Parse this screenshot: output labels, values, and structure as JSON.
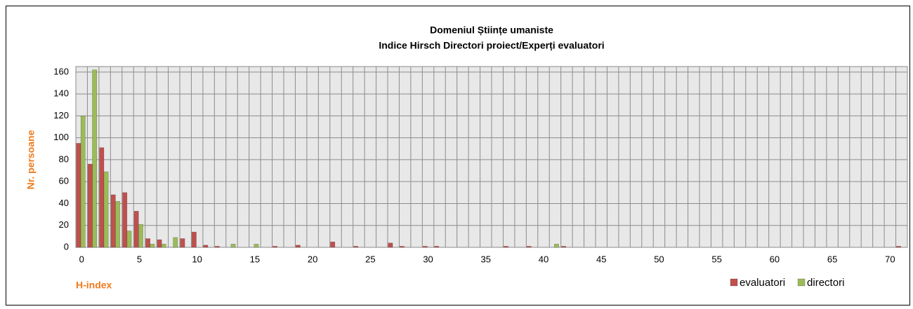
{
  "chart_data": {
    "type": "bar",
    "title": "Domeniul Științe umaniste",
    "subtitle": "Indice Hirsch Directori proiect/Experți evaluatori",
    "x_label": "H-index",
    "y_label": "Nr. persoane",
    "categories": [
      0,
      null,
      null,
      null,
      null,
      5,
      null,
      null,
      null,
      null,
      10,
      null,
      null,
      null,
      null,
      15,
      null,
      null,
      null,
      null,
      20,
      null,
      null,
      null,
      null,
      25,
      null,
      null,
      null,
      null,
      30,
      null,
      null,
      null,
      null,
      35,
      null,
      null,
      null,
      null,
      40,
      null,
      null,
      null,
      null,
      45,
      null,
      null,
      null,
      null,
      50,
      null,
      null,
      null,
      null,
      55,
      null,
      null,
      null,
      null,
      60,
      null,
      null,
      null,
      null,
      65,
      null,
      null,
      null,
      null,
      70,
      null
    ],
    "series": [
      {
        "name": "evaluatori",
        "color": "#c0504d",
        "values": [
          95,
          76,
          91,
          48,
          50,
          33,
          8,
          7,
          0,
          8,
          14,
          2,
          1,
          0,
          0,
          0,
          0,
          1,
          0,
          2,
          0,
          0,
          5,
          0,
          1,
          0,
          0,
          4,
          1,
          0,
          1,
          1,
          0,
          0,
          0,
          0,
          0,
          1,
          0,
          1,
          0,
          0,
          1,
          0,
          0,
          0,
          0,
          0,
          0,
          0,
          0,
          0,
          0,
          0,
          0,
          0,
          0,
          0,
          0,
          0,
          0,
          0,
          0,
          0,
          0,
          0,
          0,
          0,
          0,
          0,
          0,
          1
        ]
      },
      {
        "name": "directori",
        "color": "#9bbb59",
        "values": [
          120,
          162,
          69,
          42,
          15,
          21,
          3,
          3,
          9,
          0,
          0,
          0,
          0,
          3,
          0,
          3,
          0,
          0,
          0,
          0,
          0,
          0,
          0,
          0,
          0,
          0,
          0,
          0,
          0,
          0,
          0,
          0,
          0,
          0,
          0,
          0,
          0,
          0,
          0,
          0,
          0,
          3,
          0,
          0,
          0,
          0,
          0,
          0,
          0,
          0,
          0,
          0,
          0,
          0,
          0,
          0,
          0,
          0,
          0,
          0,
          0,
          0,
          0,
          0,
          0,
          0,
          0,
          0,
          0,
          0,
          0,
          0
        ]
      }
    ],
    "ylim": [
      0,
      165
    ],
    "yticks": [
      0,
      20,
      40,
      60,
      80,
      100,
      120,
      140,
      160
    ],
    "grid": true,
    "legend": "bottom-right"
  }
}
